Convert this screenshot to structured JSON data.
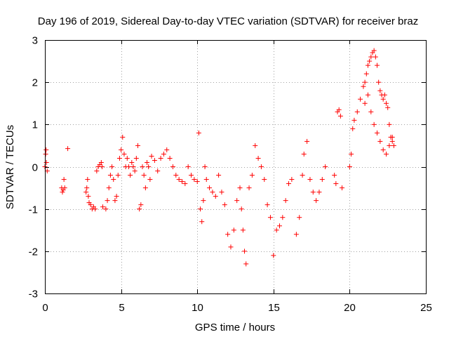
{
  "chart_data": {
    "type": "scatter",
    "title": "Day 196 of 2019, Sidereal Day-to-day VTEC variation (SDTVAR) for receiver braz",
    "xlabel": "GPS time / hours",
    "ylabel": "SDTVAR / TECUs",
    "xlim": [
      0,
      25
    ],
    "ylim": [
      -3,
      3
    ],
    "xticks": [
      0,
      5,
      10,
      15,
      20,
      25
    ],
    "yticks": [
      -3,
      -2,
      -1,
      0,
      1,
      2,
      3
    ],
    "grid": true,
    "marker": "+",
    "color": "#ff0000",
    "series": [
      {
        "name": "SDTVAR",
        "x": [
          0.0,
          0.05,
          0.08,
          0.1,
          0.15,
          1.1,
          1.15,
          1.2,
          1.25,
          1.3,
          1.5,
          2.7,
          2.75,
          2.8,
          2.85,
          2.9,
          3.0,
          3.1,
          3.2,
          3.3,
          3.4,
          3.5,
          3.6,
          3.7,
          3.75,
          3.8,
          4.0,
          4.1,
          4.2,
          4.3,
          4.4,
          4.5,
          4.6,
          4.7,
          4.8,
          4.9,
          5.0,
          5.1,
          5.2,
          5.3,
          5.4,
          5.5,
          5.6,
          5.7,
          5.8,
          5.9,
          6.0,
          6.1,
          6.2,
          6.3,
          6.4,
          6.5,
          6.6,
          6.7,
          6.8,
          6.9,
          7.0,
          7.2,
          7.4,
          7.6,
          7.8,
          8.0,
          8.2,
          8.4,
          8.6,
          8.8,
          9.0,
          9.2,
          9.4,
          9.6,
          9.8,
          10.0,
          10.1,
          10.2,
          10.3,
          10.4,
          10.5,
          10.6,
          10.8,
          11.0,
          11.2,
          11.4,
          11.6,
          11.8,
          12.0,
          12.2,
          12.4,
          12.6,
          12.8,
          12.9,
          13.0,
          13.1,
          13.2,
          13.4,
          13.6,
          13.8,
          14.0,
          14.2,
          14.4,
          14.6,
          14.8,
          15.0,
          15.2,
          15.4,
          15.6,
          15.8,
          16.0,
          16.2,
          16.5,
          16.7,
          16.9,
          17.0,
          17.2,
          17.4,
          17.6,
          17.8,
          18.0,
          18.2,
          18.4,
          19.0,
          19.1,
          19.2,
          19.3,
          19.4,
          19.5,
          20.0,
          20.1,
          20.2,
          20.3,
          20.5,
          20.7,
          20.9,
          21.0,
          21.1,
          21.2,
          21.3,
          21.4,
          21.5,
          21.6,
          21.7,
          21.8,
          21.9,
          22.0,
          22.1,
          22.2,
          22.3,
          22.4,
          22.5,
          22.6,
          22.7,
          22.8,
          22.9,
          21.0,
          21.2,
          21.4,
          21.6,
          21.8,
          22.0,
          22.2,
          22.4,
          22.6,
          22.8
        ],
        "y": [
          0.0,
          0.3,
          0.4,
          0.1,
          -0.1,
          -0.5,
          -0.6,
          -0.55,
          -0.3,
          -0.5,
          0.43,
          -0.6,
          -0.5,
          -0.3,
          -0.7,
          -0.85,
          -0.9,
          -1.0,
          -0.95,
          -1.0,
          -0.1,
          0.0,
          0.05,
          0.1,
          0.0,
          -0.95,
          -1.0,
          -0.8,
          -0.5,
          -0.2,
          0.0,
          -0.3,
          -0.8,
          -0.7,
          -0.2,
          0.2,
          0.4,
          0.7,
          0.3,
          0.0,
          0.2,
          0.0,
          -0.2,
          0.1,
          0.0,
          -0.1,
          0.2,
          0.5,
          -1.0,
          -0.9,
          0.0,
          -0.2,
          -0.5,
          0.1,
          0.0,
          -0.3,
          0.25,
          0.15,
          -0.1,
          0.2,
          0.3,
          0.4,
          0.2,
          0.0,
          -0.2,
          -0.3,
          -0.35,
          -0.4,
          0.0,
          -0.2,
          -0.3,
          -0.35,
          0.8,
          -1.0,
          -1.3,
          -0.8,
          0.0,
          -0.3,
          -0.5,
          -0.6,
          -0.7,
          -0.2,
          -0.6,
          -0.9,
          -1.6,
          -1.9,
          -1.5,
          -0.8,
          -0.5,
          -1.0,
          -1.5,
          -2.0,
          -2.3,
          -0.5,
          -0.2,
          0.5,
          0.2,
          0.0,
          -0.3,
          -0.9,
          -1.2,
          -2.1,
          -1.5,
          -1.4,
          -1.2,
          -0.8,
          -0.4,
          -0.3,
          -1.6,
          -1.2,
          -0.2,
          0.3,
          0.6,
          -0.3,
          -0.6,
          -0.8,
          -0.6,
          -0.3,
          0.0,
          -0.2,
          -0.4,
          1.3,
          1.35,
          1.2,
          -0.5,
          0.0,
          0.3,
          0.9,
          1.1,
          1.3,
          1.6,
          1.9,
          2.0,
          2.2,
          2.4,
          2.5,
          2.6,
          2.7,
          2.75,
          2.6,
          2.4,
          2.0,
          1.8,
          1.7,
          1.6,
          1.7,
          1.5,
          1.4,
          1.0,
          0.7,
          0.6,
          0.5,
          1.5,
          1.7,
          1.3,
          1.0,
          0.8,
          0.6,
          0.4,
          0.3,
          0.5,
          0.7
        ]
      }
    ]
  }
}
